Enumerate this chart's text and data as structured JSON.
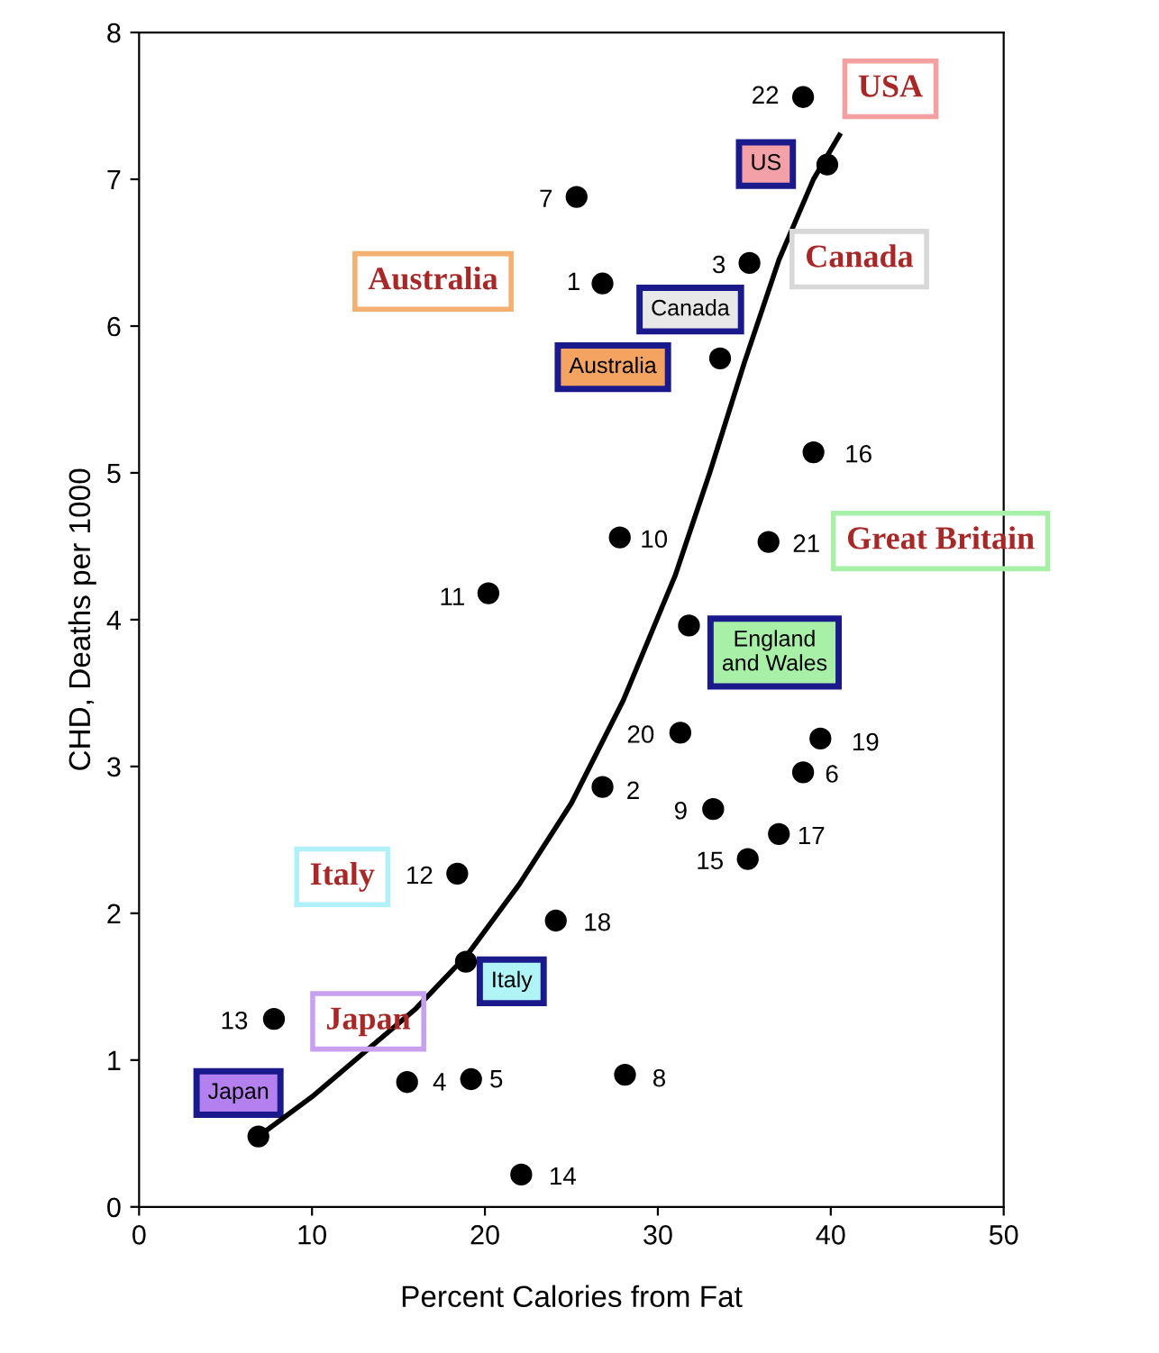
{
  "chart_data": {
    "type": "scatter",
    "xlabel": "Percent Calories from Fat",
    "ylabel": "CHD, Deaths per 1000",
    "xlim": [
      0,
      50
    ],
    "ylim": [
      0,
      8
    ],
    "xticks": [
      0,
      10,
      20,
      30,
      40,
      50
    ],
    "yticks": [
      0,
      1,
      2,
      3,
      4,
      5,
      6,
      7,
      8
    ],
    "grid": false,
    "series": [
      {
        "marker": "circle",
        "color": "#000000",
        "x": [
          38.4,
          39.8,
          25.3,
          26.8,
          35.3,
          33.6,
          39.0,
          27.8,
          36.4,
          20.2,
          31.8,
          31.3,
          39.4,
          38.4,
          26.8,
          33.2,
          37.0,
          35.2,
          18.4,
          24.1,
          18.9,
          7.8,
          15.5,
          19.2,
          28.1,
          6.9,
          22.1
        ],
        "values": [
          7.56,
          7.1,
          6.88,
          6.29,
          6.43,
          5.78,
          5.14,
          4.56,
          4.53,
          4.18,
          3.96,
          3.23,
          3.19,
          2.96,
          2.86,
          2.71,
          2.54,
          2.37,
          2.27,
          1.95,
          1.67,
          1.28,
          0.85,
          0.87,
          0.9,
          0.48,
          0.22
        ]
      },
      {
        "type": "line",
        "marker": "none",
        "color": "#000000",
        "x": [
          6.9,
          10,
          13,
          16,
          19,
          22,
          25,
          28,
          31,
          33,
          35,
          37,
          39,
          40.5
        ],
        "values": [
          0.48,
          0.75,
          1.05,
          1.35,
          1.72,
          2.2,
          2.75,
          3.45,
          4.3,
          5.0,
          5.75,
          6.45,
          7.0,
          7.3
        ]
      }
    ],
    "annotations": [
      {
        "text": "22",
        "x": 38.4,
        "y": 7.56
      },
      {
        "text": "7",
        "x": 25.3,
        "y": 6.88
      },
      {
        "text": "1",
        "x": 26.8,
        "y": 6.29
      },
      {
        "text": "3",
        "x": 35.3,
        "y": 6.43
      },
      {
        "text": "16",
        "x": 39.0,
        "y": 5.14
      },
      {
        "text": "10",
        "x": 27.8,
        "y": 4.56
      },
      {
        "text": "21",
        "x": 36.4,
        "y": 4.53
      },
      {
        "text": "11",
        "x": 20.2,
        "y": 4.18
      },
      {
        "text": "20",
        "x": 31.3,
        "y": 3.23
      },
      {
        "text": "19",
        "x": 39.4,
        "y": 3.19
      },
      {
        "text": "6",
        "x": 38.4,
        "y": 2.96
      },
      {
        "text": "2",
        "x": 26.8,
        "y": 2.86
      },
      {
        "text": "9",
        "x": 33.2,
        "y": 2.71
      },
      {
        "text": "17",
        "x": 37.0,
        "y": 2.54
      },
      {
        "text": "15",
        "x": 35.2,
        "y": 2.37
      },
      {
        "text": "12",
        "x": 18.4,
        "y": 2.27
      },
      {
        "text": "18",
        "x": 24.1,
        "y": 1.95
      },
      {
        "text": "13",
        "x": 7.8,
        "y": 1.28
      },
      {
        "text": "4",
        "x": 15.5,
        "y": 0.85
      },
      {
        "text": "5",
        "x": 19.2,
        "y": 0.87
      },
      {
        "text": "8",
        "x": 28.1,
        "y": 0.9
      },
      {
        "text": "14",
        "x": 22.1,
        "y": 0.22
      },
      "US",
      "Canada",
      "Australia",
      "England\nand Wales",
      "Italy",
      "Japan",
      "USA",
      "Canada",
      "Australia",
      "Great Britain",
      "Italy",
      "Japan"
    ]
  }
}
